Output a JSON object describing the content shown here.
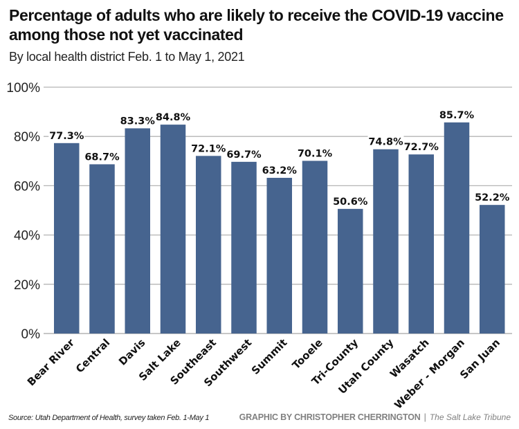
{
  "header": {
    "title": "Percentage of adults who are likely to receive the COVID-19 vaccine among those not yet vaccinated",
    "subtitle": "By local health district Feb. 1 to May 1, 2021"
  },
  "footer": {
    "source": "Source: Utah Department of Health, survey taken Feb. 1-May 1",
    "credit": "GRAPHIC BY CHRISTOPHER CHERRINGTON",
    "separator": "|",
    "publication": "The Salt Lake Tribune"
  },
  "colors": {
    "bar": "#46648f",
    "grid": "#b4b4b4"
  },
  "chart_data": {
    "type": "bar",
    "title": "Percentage of adults who are likely to receive the COVID-19 vaccine among those not yet vaccinated",
    "subtitle": "By local health district Feb. 1 to May 1, 2021",
    "xlabel": "",
    "ylabel": "",
    "ylim": [
      0,
      100
    ],
    "yticks": [
      0,
      20,
      40,
      60,
      80,
      100
    ],
    "ytick_labels": [
      "0%",
      "20%",
      "40%",
      "60%",
      "80%",
      "100%"
    ],
    "grid": true,
    "legend": "none",
    "categories": [
      "Bear River",
      "Central",
      "Davis",
      "Salt Lake",
      "Southeast",
      "Southwest",
      "Summit",
      "Tooele",
      "Tri-County",
      "Utah County",
      "Wasatch",
      "Weber - Morgan",
      "San Juan"
    ],
    "values": [
      77.3,
      68.7,
      83.3,
      84.8,
      72.1,
      69.7,
      63.2,
      70.1,
      50.6,
      74.8,
      72.7,
      85.7,
      52.2
    ],
    "value_labels": [
      "77.3%",
      "68.7%",
      "83.3%",
      "84.8%",
      "72.1%",
      "69.7%",
      "63.2%",
      "70.1%",
      "50.6%",
      "74.8%",
      "72.7%",
      "85.7%",
      "52.2%"
    ]
  }
}
